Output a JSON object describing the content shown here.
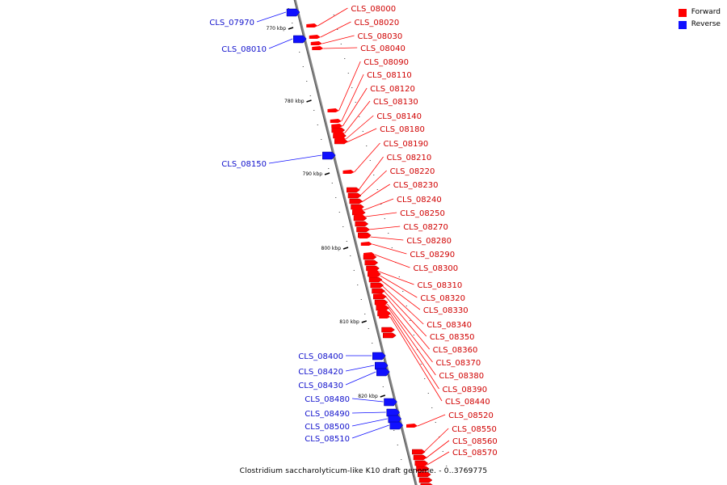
{
  "caption": "Clostridium saccharolyticum-like K10 draft genome. - 0..3769775",
  "legend": {
    "forward_label": "Forward",
    "reverse_label": "Reverse",
    "forward_color": "#ff0000",
    "reverse_color": "#1010ff"
  },
  "scale_labels": [
    "770 kbp",
    "780 kbp",
    "790 kbp",
    "800 kbp",
    "810 kbp",
    "820 kbp"
  ],
  "forward_genes": [
    "CLS_08000",
    "CLS_08020",
    "CLS_08030",
    "CLS_08040",
    "CLS_08090",
    "CLS_08110",
    "CLS_08120",
    "CLS_08130",
    "CLS_08140",
    "CLS_08180",
    "CLS_08190",
    "CLS_08210",
    "CLS_08220",
    "CLS_08230",
    "CLS_08240",
    "CLS_08250",
    "CLS_08270",
    "CLS_08280",
    "CLS_08290",
    "CLS_08300",
    "CLS_08310",
    "CLS_08320",
    "CLS_08330",
    "CLS_08340",
    "CLS_08350",
    "CLS_08360",
    "CLS_08370",
    "CLS_08380",
    "CLS_08390",
    "CLS_08440",
    "CLS_08520",
    "CLS_08550",
    "CLS_08560",
    "CLS_08570"
  ],
  "reverse_genes": [
    "CLS_07970",
    "CLS_08010",
    "CLS_08150",
    "CLS_08400",
    "CLS_08420",
    "CLS_08430",
    "CLS_08480",
    "CLS_08490",
    "CLS_08500",
    "CLS_08510"
  ]
}
